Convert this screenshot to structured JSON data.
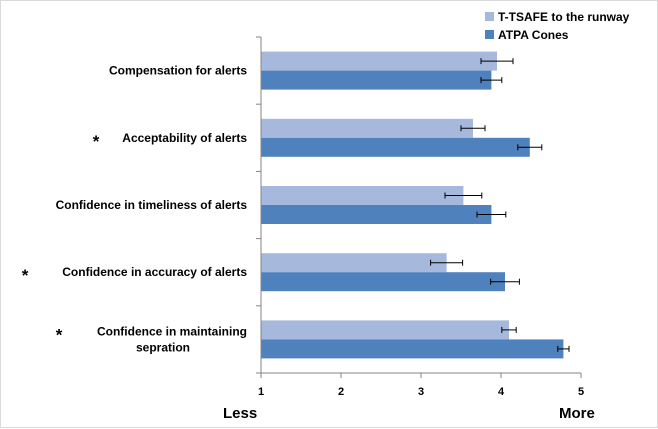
{
  "chart_data": {
    "type": "bar",
    "orientation": "horizontal",
    "categories": [
      "Compensation for alerts",
      "Acceptability of alerts",
      "Confidence in timeliness of alerts",
      "Confidence in accuracy of alerts",
      "Confidence in maintaining sepration"
    ],
    "category_lines": [
      [
        "Compensation for alerts"
      ],
      [
        "Acceptability of alerts"
      ],
      [
        "Confidence in timeliness of alerts"
      ],
      [
        "Confidence in accuracy of alerts"
      ],
      [
        "Confidence in maintaining",
        "sepration"
      ]
    ],
    "significant": [
      false,
      true,
      false,
      true,
      true
    ],
    "significance_marker": "*",
    "series": [
      {
        "name": "T-TSAFE to the runway",
        "color": "#a6b9dd",
        "values": [
          3.95,
          3.65,
          3.53,
          3.32,
          4.1
        ],
        "errors": [
          0.2,
          0.15,
          0.23,
          0.2,
          0.09
        ]
      },
      {
        "name": "ATPA Cones",
        "color": "#4f81bd",
        "values": [
          3.88,
          4.36,
          3.88,
          4.05,
          4.78
        ],
        "errors": [
          0.13,
          0.15,
          0.18,
          0.18,
          0.07
        ]
      }
    ],
    "xlim": [
      1,
      5
    ],
    "xticks": [
      "1",
      "2",
      "3",
      "4",
      "5"
    ],
    "x_end_labels": {
      "left": "Less",
      "right": "More"
    },
    "legend_position": "top-right",
    "grid": false
  }
}
